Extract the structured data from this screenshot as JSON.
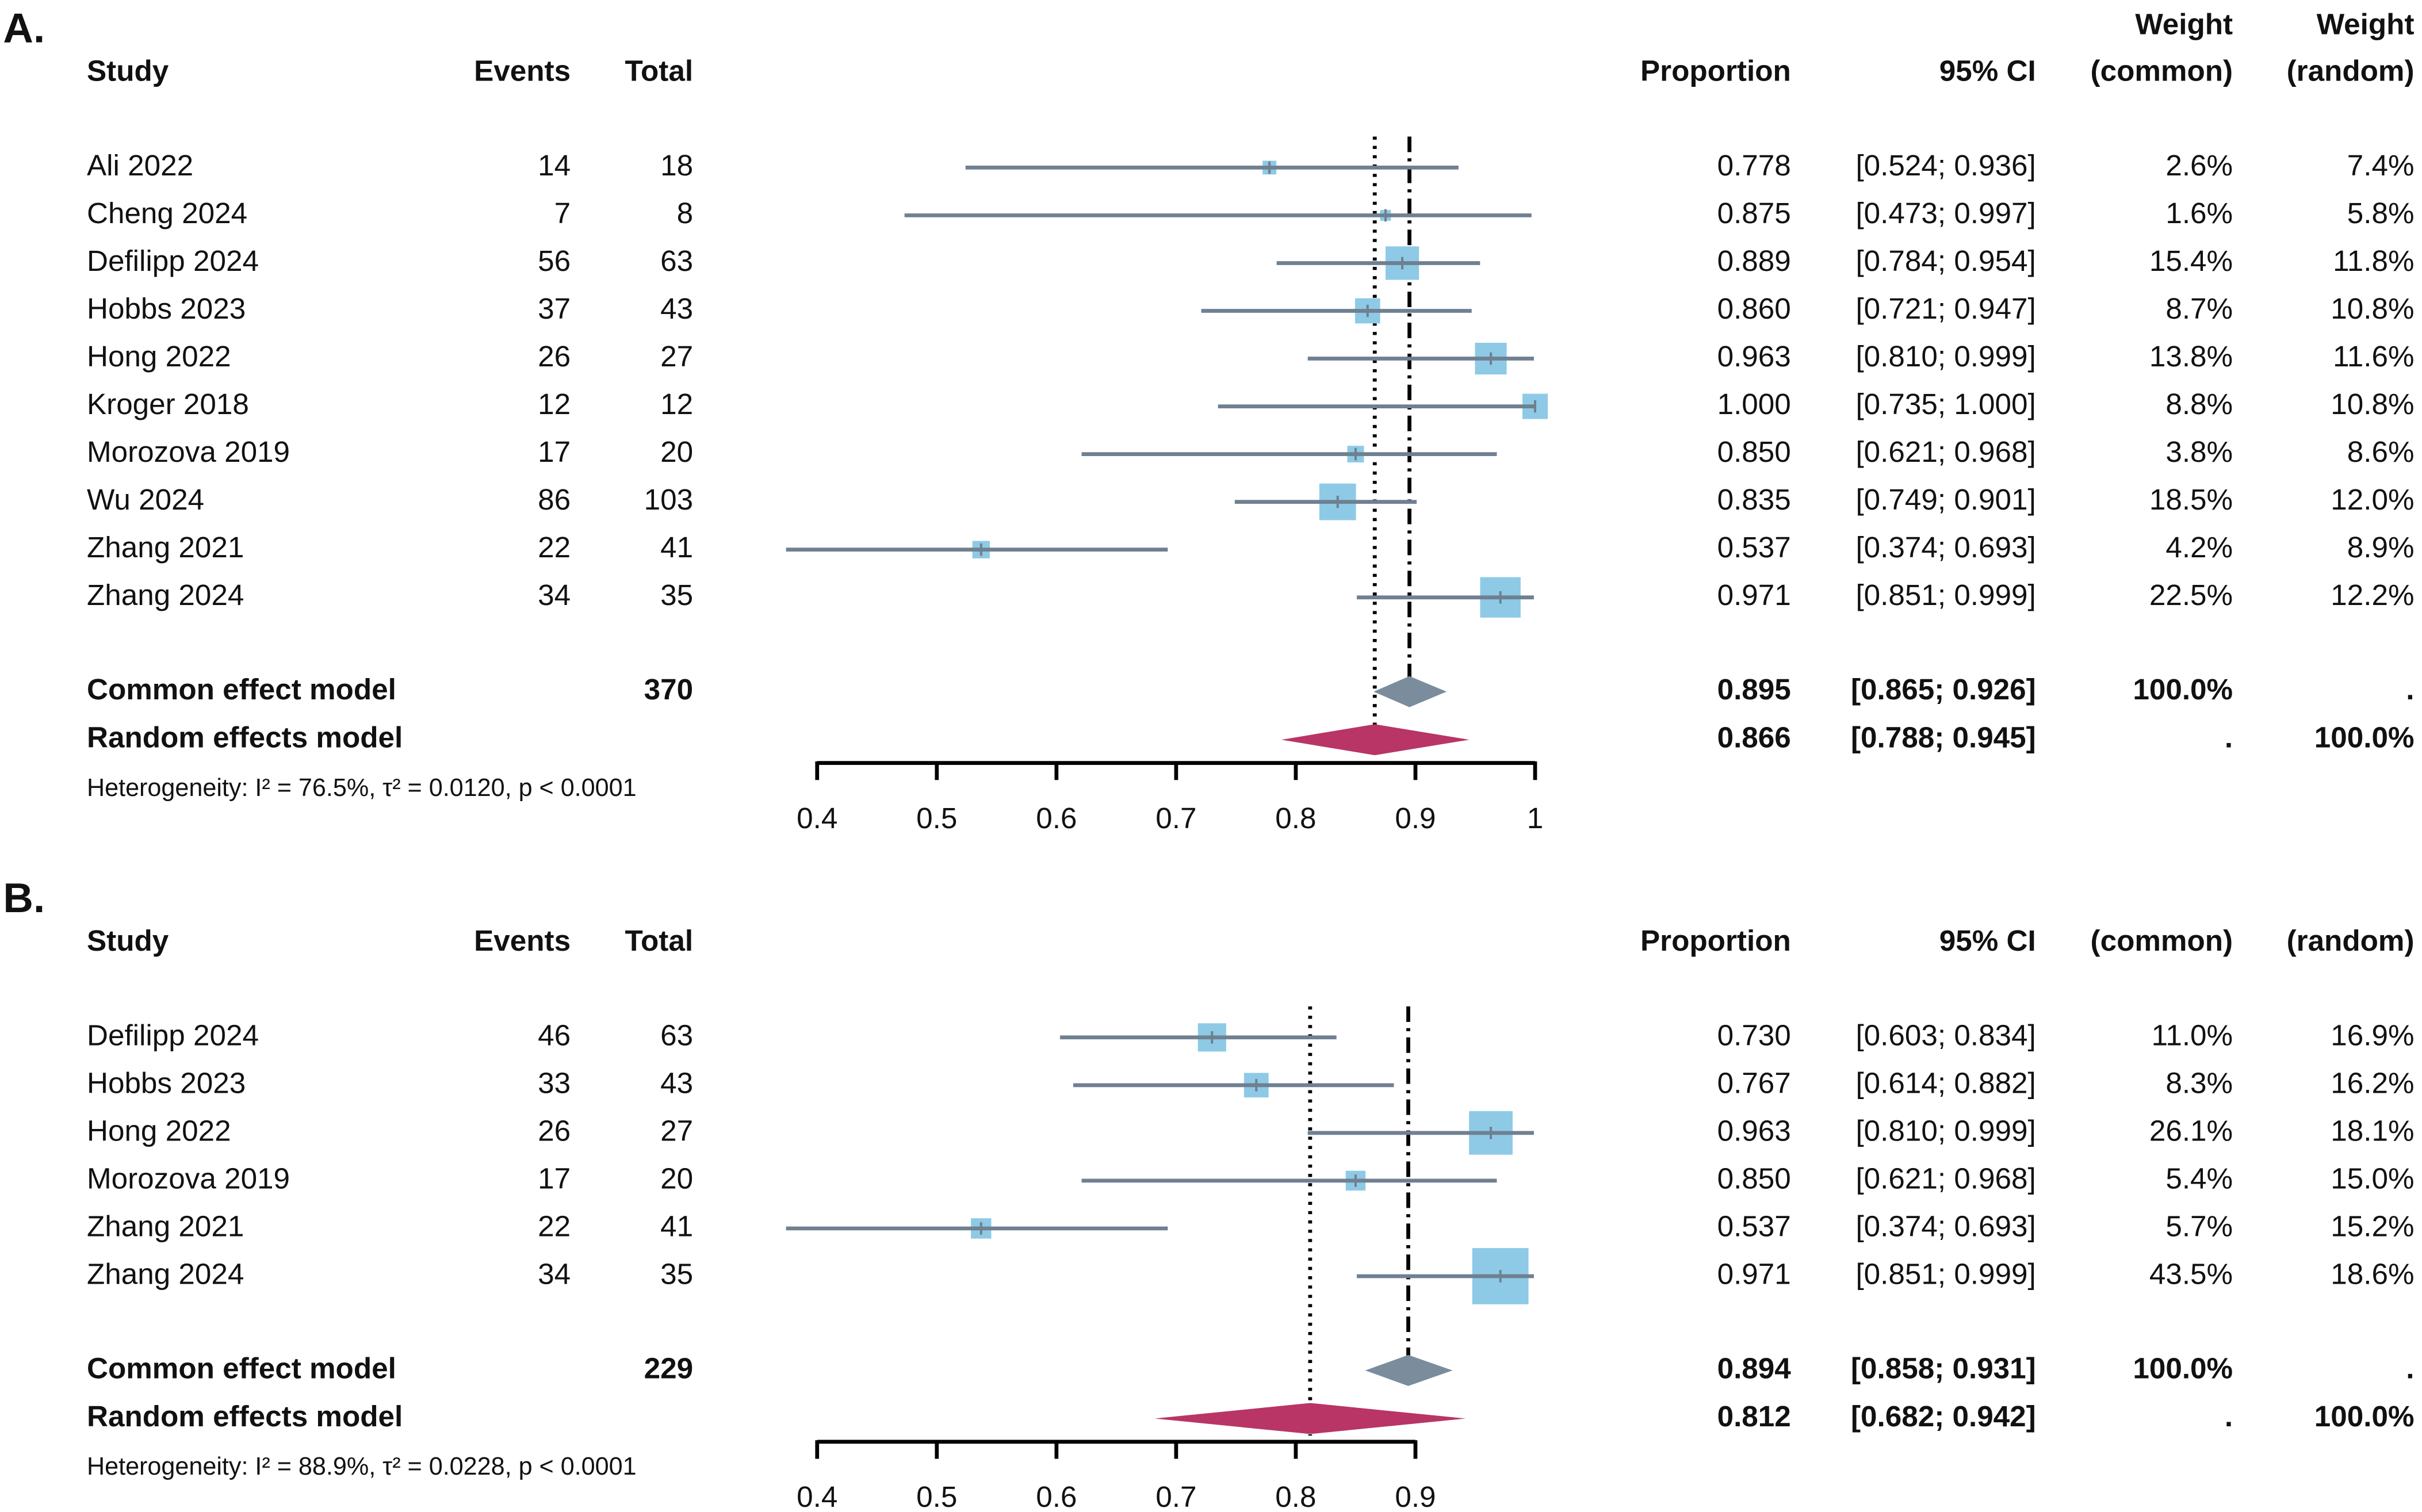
{
  "chart_data": [
    {
      "type": "forest",
      "panel_label": "A.",
      "headers": {
        "study": "Study",
        "events": "Events",
        "total": "Total",
        "proportion": "Proportion",
        "ci": "95% CI",
        "weight_common": [
          "Weight",
          "(common)"
        ],
        "weight_random": [
          "Weight",
          "(random)"
        ]
      },
      "studies": [
        "Ali 2022",
        "Cheng 2024",
        "Defilipp 2024",
        "Hobbs 2023",
        "Hong 2022",
        "Kroger 2018",
        "Morozova 2019",
        "Wu 2024",
        "Zhang 2021",
        "Zhang 2024"
      ],
      "events": [
        14,
        7,
        56,
        37,
        26,
        12,
        17,
        86,
        22,
        34
      ],
      "totals": [
        18,
        8,
        63,
        43,
        27,
        12,
        20,
        103,
        41,
        35
      ],
      "values": [
        0.778,
        0.875,
        0.889,
        0.86,
        0.963,
        1,
        0.85,
        0.835,
        0.537,
        0.971
      ],
      "value_labels": [
        "0.778",
        "0.875",
        "0.889",
        "0.860",
        "0.963",
        "1.000",
        "0.850",
        "0.835",
        "0.537",
        "0.971"
      ],
      "lower": [
        0.524,
        0.473,
        0.784,
        0.721,
        0.81,
        0.735,
        0.621,
        0.749,
        0.374,
        0.851
      ],
      "upper": [
        0.936,
        0.997,
        0.954,
        0.947,
        0.999,
        1,
        0.968,
        0.901,
        0.693,
        0.999
      ],
      "ci_labels": [
        "[0.524; 0.936]",
        "[0.473; 0.997]",
        "[0.784; 0.954]",
        "[0.721; 0.947]",
        "[0.810; 0.999]",
        "[0.735; 1.000]",
        "[0.621; 0.968]",
        "[0.749; 0.901]",
        "[0.374; 0.693]",
        "[0.851; 0.999]"
      ],
      "weight_common": [
        2.6,
        1.6,
        15.4,
        8.7,
        13.8,
        8.8,
        3.8,
        18.5,
        4.2,
        22.5
      ],
      "weight_common_labels": [
        "2.6%",
        "1.6%",
        "15.4%",
        "8.7%",
        "13.8%",
        "8.8%",
        "3.8%",
        "18.5%",
        "4.2%",
        "22.5%"
      ],
      "weight_random": [
        7.4,
        5.8,
        11.8,
        10.8,
        11.6,
        10.8,
        8.6,
        12.0,
        8.9,
        12.2
      ],
      "weight_random_labels": [
        "7.4%",
        "5.8%",
        "11.8%",
        "10.8%",
        "11.6%",
        "10.8%",
        "8.6%",
        "12.0%",
        "8.9%",
        "12.2%"
      ],
      "common": {
        "label": "Common effect model",
        "total": 370,
        "value": 0.895,
        "value_label": "0.895",
        "lower": 0.865,
        "upper": 0.926,
        "ci_label": "[0.865; 0.926]",
        "weight_common_label": "100.0%",
        "weight_random_label": "."
      },
      "random": {
        "label": "Random effects model",
        "value": 0.866,
        "value_label": "0.866",
        "lower": 0.788,
        "upper": 0.945,
        "ci_label": "[0.788; 0.945]",
        "weight_common_label": ".",
        "weight_random_label": "100.0%"
      },
      "heterogeneity": "Heterogeneity: I² = 76.5%, τ² = 0.0120, p < 0.0001",
      "xlim": [
        0.4,
        1
      ],
      "xticks": [
        0.4,
        0.5,
        0.6,
        0.7,
        0.8,
        0.9,
        1
      ],
      "square_color": "#8ecae6",
      "line_color": "#6f8091",
      "common_color": "#7b8c9c",
      "random_color": "#b83566"
    },
    {
      "type": "forest",
      "panel_label": "B.",
      "headers": {
        "study": "Study",
        "events": "Events",
        "total": "Total",
        "proportion": "Proportion",
        "ci": "95% CI",
        "weight_common": [
          "(common)"
        ],
        "weight_random": [
          "(random)"
        ]
      },
      "studies": [
        "Defilipp 2024",
        "Hobbs 2023",
        "Hong 2022",
        "Morozova 2019",
        "Zhang 2021",
        "Zhang 2024"
      ],
      "events": [
        46,
        33,
        26,
        17,
        22,
        34
      ],
      "totals": [
        63,
        43,
        27,
        20,
        41,
        35
      ],
      "values": [
        0.73,
        0.767,
        0.963,
        0.85,
        0.537,
        0.971
      ],
      "value_labels": [
        "0.730",
        "0.767",
        "0.963",
        "0.850",
        "0.537",
        "0.971"
      ],
      "lower": [
        0.603,
        0.614,
        0.81,
        0.621,
        0.374,
        0.851
      ],
      "upper": [
        0.834,
        0.882,
        0.999,
        0.968,
        0.693,
        0.999
      ],
      "ci_labels": [
        "[0.603; 0.834]",
        "[0.614; 0.882]",
        "[0.810; 0.999]",
        "[0.621; 0.968]",
        "[0.374; 0.693]",
        "[0.851; 0.999]"
      ],
      "weight_common": [
        11.0,
        8.3,
        26.1,
        5.4,
        5.7,
        43.5
      ],
      "weight_common_labels": [
        "11.0%",
        "8.3%",
        "26.1%",
        "5.4%",
        "5.7%",
        "43.5%"
      ],
      "weight_random": [
        16.9,
        16.2,
        18.1,
        15.0,
        15.2,
        18.6
      ],
      "weight_random_labels": [
        "16.9%",
        "16.2%",
        "18.1%",
        "15.0%",
        "15.2%",
        "18.6%"
      ],
      "common": {
        "label": "Common effect model",
        "total": 229,
        "value": 0.894,
        "value_label": "0.894",
        "lower": 0.858,
        "upper": 0.931,
        "ci_label": "[0.858; 0.931]",
        "weight_common_label": "100.0%",
        "weight_random_label": "."
      },
      "random": {
        "label": "Random effects model",
        "value": 0.812,
        "value_label": "0.812",
        "lower": 0.682,
        "upper": 0.942,
        "ci_label": "[0.682; 0.942]",
        "weight_common_label": ".",
        "weight_random_label": "100.0%"
      },
      "heterogeneity": "Heterogeneity: I² = 88.9%, τ² = 0.0228, p < 0.0001",
      "xlim": [
        0.4,
        0.9
      ],
      "xticks": [
        0.4,
        0.5,
        0.6,
        0.7,
        0.8,
        0.9
      ],
      "square_color": "#8ecae6",
      "line_color": "#6f8091",
      "common_color": "#7b8c9c",
      "random_color": "#b83566"
    }
  ]
}
